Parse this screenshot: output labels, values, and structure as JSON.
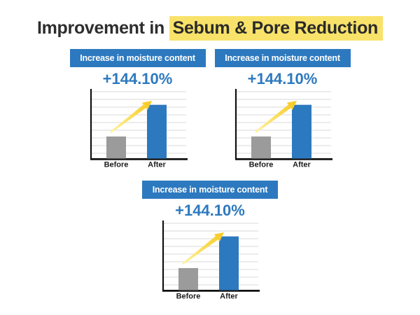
{
  "page": {
    "title_prefix": "Improvement in ",
    "title_highlight": "Sebum & Pore Reduction"
  },
  "colors": {
    "accent_blue": "#2d79bf",
    "bar_gray": "#9b9b9b",
    "highlight_yellow": "#f8e269",
    "arrow_gold_light": "#fff3a0",
    "arrow_gold": "#f7c81d",
    "gridline": "#d8d8d8",
    "axis_black": "#111111",
    "title_text": "#2d2d2d",
    "background": "#ffffff"
  },
  "chart_data": [
    {
      "type": "bar",
      "title": "Increase in moisture content",
      "percent_label": "+144.10%",
      "increase_pct": 144.1,
      "categories": [
        "Before",
        "After"
      ],
      "values": [
        100,
        244.1
      ],
      "ylim": [
        0,
        305
      ],
      "grid": true,
      "legend": "none",
      "bar_colors": [
        "#9b9b9b",
        "#2d79bf"
      ],
      "annotation": "yellow growth arrow from Before bar to top of After bar"
    },
    {
      "type": "bar",
      "title": "Increase in moisture content",
      "percent_label": "+144.10%",
      "increase_pct": 144.1,
      "categories": [
        "Before",
        "After"
      ],
      "values": [
        100,
        244.1
      ],
      "ylim": [
        0,
        305
      ],
      "grid": true,
      "legend": "none",
      "bar_colors": [
        "#9b9b9b",
        "#2d79bf"
      ],
      "annotation": "yellow growth arrow from Before bar to top of After bar"
    },
    {
      "type": "bar",
      "title": "Increase in moisture content",
      "percent_label": "+144.10%",
      "increase_pct": 144.1,
      "categories": [
        "Before",
        "After"
      ],
      "values": [
        100,
        244.1
      ],
      "ylim": [
        0,
        305
      ],
      "grid": true,
      "legend": "none",
      "bar_colors": [
        "#9b9b9b",
        "#2d79bf"
      ],
      "annotation": "yellow growth arrow from Before bar to top of After bar"
    }
  ]
}
